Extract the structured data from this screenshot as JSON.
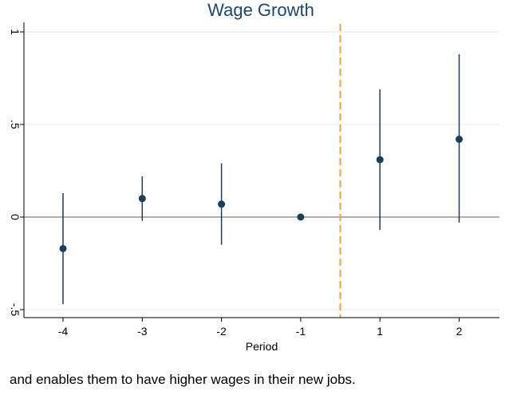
{
  "chart_data": {
    "type": "scatter",
    "title": "Wage Growth",
    "xlabel": "Period",
    "ylabel": "",
    "x": [
      -4,
      -3,
      -2,
      -1,
      1,
      2
    ],
    "x_tick_labels": [
      "-4",
      "-3",
      "-2",
      "-1",
      "1",
      "2"
    ],
    "estimates": [
      -0.17,
      0.1,
      0.07,
      0.0,
      0.31,
      0.42
    ],
    "ci_lower": [
      -0.47,
      -0.02,
      -0.15,
      0.0,
      -0.07,
      -0.03
    ],
    "ci_upper": [
      0.13,
      0.22,
      0.29,
      0.0,
      0.69,
      0.88
    ],
    "y_ticks": [
      -0.5,
      0,
      0.5,
      1
    ],
    "y_tick_labels": [
      "-.5",
      "0",
      ".5",
      "1"
    ],
    "ylim": [
      -0.55,
      1.05
    ],
    "reference_line_y": 0,
    "vertical_line_between": [
      -1,
      1
    ],
    "grid": true,
    "colors": {
      "marker": "#1a3f5c",
      "title": "#1a476f",
      "dashed": "#f2a23a",
      "grid": "#eaeaea",
      "zero_line": "#808080"
    }
  },
  "caption": "and enables them to have higher wages in their new jobs."
}
